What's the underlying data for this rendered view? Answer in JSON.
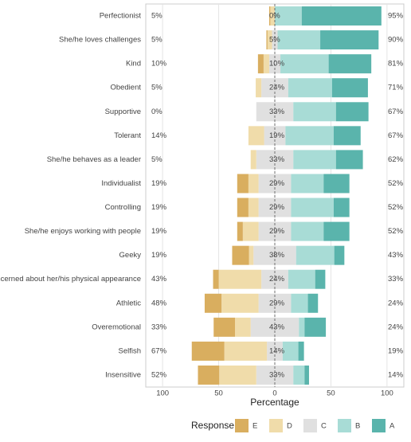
{
  "chart_data": {
    "type": "diverging_bar",
    "x_label": "Percentage",
    "legend_title": "Response",
    "categories": [
      "Perfectionist",
      "She/he loves challenges",
      "Kind",
      "Obedient",
      "Supportive",
      "Tolerant",
      "She/he behaves as a leader",
      "Individualist",
      "Controlling",
      "She/he enjoys working with people",
      "Geeky",
      "Concerned about her/his physical appearance",
      "Athletic",
      "Overemotional",
      "Selfish",
      "Insensitive"
    ],
    "series": [
      {
        "name": "E",
        "color": "#d9ae5f",
        "side": "left-outer",
        "values": [
          1,
          1,
          5,
          0,
          0,
          0,
          0,
          10,
          10,
          5,
          15,
          5,
          15,
          19,
          29,
          19
        ]
      },
      {
        "name": "D",
        "color": "#f0dcaa",
        "side": "left-inner",
        "values": [
          4,
          4,
          5,
          5,
          0,
          14,
          5,
          9,
          9,
          14,
          4,
          38,
          33,
          14,
          38,
          33
        ]
      },
      {
        "name": "C",
        "color": "#e0e0e0",
        "side": "center",
        "values": [
          0,
          5,
          10,
          24,
          33,
          19,
          33,
          29,
          29,
          29,
          38,
          24,
          29,
          43,
          14,
          33
        ]
      },
      {
        "name": "B",
        "color": "#a8dcd6",
        "side": "right-inner",
        "values": [
          24,
          38,
          43,
          39,
          38,
          43,
          38,
          29,
          38,
          29,
          34,
          24,
          15,
          5,
          14,
          10
        ]
      },
      {
        "name": "A",
        "color": "#5ab4ac",
        "side": "right-outer",
        "values": [
          71,
          52,
          38,
          32,
          29,
          24,
          24,
          23,
          14,
          23,
          9,
          9,
          9,
          19,
          5,
          4
        ]
      }
    ],
    "left_labels": [
      "5%",
      "5%",
      "10%",
      "5%",
      "0%",
      "14%",
      "5%",
      "19%",
      "19%",
      "19%",
      "19%",
      "43%",
      "48%",
      "33%",
      "67%",
      "52%"
    ],
    "center_labels": [
      "0%",
      "5%",
      "10%",
      "24%",
      "33%",
      "19%",
      "33%",
      "29%",
      "29%",
      "29%",
      "38%",
      "24%",
      "29%",
      "43%",
      "14%",
      "33%"
    ],
    "right_labels": [
      "95%",
      "90%",
      "81%",
      "71%",
      "67%",
      "67%",
      "62%",
      "52%",
      "52%",
      "52%",
      "43%",
      "33%",
      "24%",
      "24%",
      "19%",
      "14%"
    ],
    "xlim": [
      -115,
      115
    ],
    "xticks": [
      {
        "value": -100,
        "label": "100"
      },
      {
        "value": -50,
        "label": "50"
      },
      0,
      50,
      100
    ],
    "grid": true
  }
}
